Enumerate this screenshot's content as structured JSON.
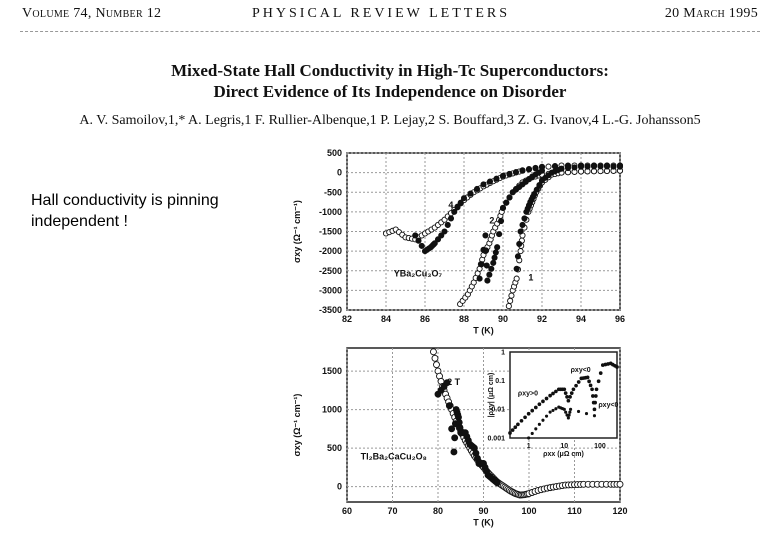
{
  "header": {
    "volume": "Volume 74, Number 12",
    "journal": "PHYSICAL REVIEW LETTERS",
    "date": "20 March 1995"
  },
  "paper": {
    "title_line1": "Mixed-State Hall Conductivity in High-Tc Superconductors:",
    "title_line2": "Direct Evidence of Its Independence on Disorder",
    "authors": "A. V. Samoilov,1,* A. Legris,1 F. Rullier-Albenque,1 P. Lejay,2 S. Bouffard,3 Z. G. Ivanov,4 L.-G. Johansson5"
  },
  "slide": {
    "note_line1": "Hall conductivity is pinning",
    "note_line2": "independent !"
  },
  "chart_data": [
    {
      "type": "scatter",
      "xlabel": "T (K)",
      "ylabel": "σxy (Ω⁻¹ cm⁻¹)",
      "xlim": [
        82,
        96
      ],
      "ylim": [
        -3500,
        500
      ],
      "xticks": [
        82,
        84,
        86,
        88,
        90,
        92,
        94,
        96
      ],
      "yticks": [
        500,
        0,
        -500,
        -1000,
        -1500,
        -2000,
        -2500,
        -3000,
        -3500
      ],
      "grid": true,
      "annotations": [
        {
          "text": "4",
          "x": 87.2,
          "y": -900
        },
        {
          "text": "2",
          "x": 89.3,
          "y": -1300
        },
        {
          "text": "1",
          "x": 91.3,
          "y": -2750
        },
        {
          "text": "YBa₂Cu₃O₇",
          "x": 84.4,
          "y": -2650
        }
      ],
      "series": [
        {
          "marker": "open",
          "points": [
            [
              84,
              -1550
            ],
            [
              84.5,
              -1450
            ],
            [
              85,
              -1650
            ],
            [
              85.5,
              -1700
            ],
            [
              86,
              -1550
            ],
            [
              86.5,
              -1400
            ],
            [
              87,
              -1200
            ],
            [
              87.5,
              -950
            ],
            [
              88,
              -700
            ],
            [
              88.5,
              -500
            ],
            [
              89,
              -350
            ],
            [
              89.5,
              -220
            ],
            [
              90,
              -100
            ],
            [
              90.5,
              -20
            ],
            [
              91,
              50
            ],
            [
              92,
              140
            ],
            [
              93,
              180
            ],
            [
              94,
              180
            ],
            [
              95,
              180
            ],
            [
              96,
              180
            ]
          ]
        },
        {
          "marker": "filled",
          "points": [
            [
              85.5,
              -1600
            ],
            [
              86,
              -2000
            ],
            [
              86.3,
              -1900
            ],
            [
              86.5,
              -1800
            ],
            [
              87,
              -1500
            ],
            [
              87.5,
              -1000
            ],
            [
              88,
              -650
            ],
            [
              89,
              -300
            ],
            [
              90,
              -80
            ],
            [
              91,
              60
            ],
            [
              92,
              150
            ],
            [
              94,
              180
            ],
            [
              96,
              180
            ]
          ]
        },
        {
          "marker": "open",
          "points": [
            [
              87.8,
              -3350
            ],
            [
              88.2,
              -3100
            ],
            [
              88.5,
              -2800
            ],
            [
              88.8,
              -2450
            ],
            [
              89,
              -2100
            ],
            [
              89.3,
              -1800
            ],
            [
              89.5,
              -1500
            ],
            [
              89.8,
              -1200
            ],
            [
              90,
              -900
            ],
            [
              90.5,
              -500
            ],
            [
              91,
              -250
            ],
            [
              91.5,
              -120
            ],
            [
              92,
              -50
            ],
            [
              93,
              0
            ],
            [
              94,
              30
            ],
            [
              95,
              40
            ],
            [
              96,
              50
            ]
          ]
        },
        {
          "marker": "filled",
          "points": [
            [
              88.8,
              -2700
            ],
            [
              89.1,
              -1600
            ],
            [
              89.2,
              -2750
            ],
            [
              89.5,
              -2300
            ],
            [
              89.7,
              -1900
            ],
            [
              90,
              -900
            ],
            [
              90.5,
              -500
            ],
            [
              91,
              -300
            ],
            [
              91.5,
              -100
            ],
            [
              92,
              50
            ]
          ]
        },
        {
          "marker": "open",
          "points": [
            [
              90.3,
              -3400
            ],
            [
              90.5,
              -3000
            ],
            [
              90.7,
              -2700
            ],
            [
              90.9,
              -2000
            ],
            [
              91,
              -1600
            ],
            [
              91.3,
              -1000
            ],
            [
              91.5,
              -750
            ],
            [
              91.7,
              -500
            ],
            [
              92,
              -250
            ],
            [
              92.5,
              -50
            ],
            [
              93,
              0
            ],
            [
              94,
              30
            ],
            [
              95,
              40
            ],
            [
              96,
              50
            ]
          ]
        },
        {
          "marker": "filled",
          "points": [
            [
              90.7,
              -2450
            ],
            [
              90.9,
              -1500
            ],
            [
              91.2,
              -1000
            ],
            [
              91.4,
              -750
            ],
            [
              91.6,
              -550
            ],
            [
              92,
              -200
            ],
            [
              92.5,
              0
            ],
            [
              93,
              100
            ],
            [
              94,
              150
            ],
            [
              95,
              160
            ],
            [
              96,
              150
            ]
          ]
        }
      ]
    },
    {
      "type": "scatter",
      "xlabel": "T (K)",
      "ylabel": "σxy (Ω⁻¹ cm⁻¹)",
      "xlim": [
        60,
        120
      ],
      "ylim": [
        -200,
        1800
      ],
      "xticks": [
        60,
        70,
        80,
        90,
        100,
        110,
        120
      ],
      "yticks": [
        0,
        500,
        1000,
        1500
      ],
      "grid": true,
      "annotations": [
        {
          "text": "2 T",
          "x": 82,
          "y": 1320
        },
        {
          "text": "Tl₂Ba₂CaCu₂O₈",
          "x": 63,
          "y": 350
        }
      ],
      "series": [
        {
          "marker": "open",
          "points": [
            [
              79,
              1750
            ],
            [
              80,
              1500
            ],
            [
              81,
              1300
            ],
            [
              82,
              1150
            ],
            [
              83,
              1000
            ],
            [
              84,
              850
            ],
            [
              85,
              720
            ],
            [
              86,
              600
            ],
            [
              87,
              500
            ],
            [
              88,
              400
            ],
            [
              89,
              320
            ],
            [
              90,
              250
            ],
            [
              91,
              180
            ],
            [
              92,
              120
            ],
            [
              93,
              60
            ],
            [
              94,
              20
            ],
            [
              95,
              -20
            ],
            [
              96,
              -60
            ],
            [
              97,
              -90
            ],
            [
              98,
              -110
            ],
            [
              99,
              -105
            ],
            [
              100,
              -90
            ],
            [
              102,
              -50
            ],
            [
              104,
              -20
            ],
            [
              106,
              0
            ],
            [
              108,
              20
            ],
            [
              110,
              25
            ],
            [
              112,
              30
            ],
            [
              115,
              30
            ],
            [
              118,
              30
            ],
            [
              120,
              30
            ]
          ]
        },
        {
          "marker": "filled",
          "points": [
            [
              80,
              1200
            ],
            [
              82,
              1350
            ],
            [
              83.5,
              450
            ],
            [
              84,
              1000
            ],
            [
              84.5,
              900
            ],
            [
              85,
              700
            ],
            [
              86,
              700
            ],
            [
              87,
              550
            ],
            [
              88,
              500
            ],
            [
              89,
              300
            ],
            [
              90,
              300
            ],
            [
              91,
              150
            ],
            [
              92,
              100
            ],
            [
              93,
              50
            ]
          ]
        }
      ],
      "inset": {
        "type": "scatter",
        "scale": "log-log",
        "xlabel": "ρxx (μΩ cm)",
        "ylabel": "|ρxy| (μΩ cm)",
        "xlim": [
          0.3,
          300
        ],
        "ylim": [
          0.001,
          1
        ],
        "xticks": [
          1,
          10,
          100
        ],
        "yticks": [
          0.001,
          0.01,
          0.1,
          1
        ],
        "annotations": [
          {
            "text": "ρxy>0",
            "x": 0.5,
            "y": 0.03
          },
          {
            "text": "ρxy<0",
            "x": 15,
            "y": 0.2
          },
          {
            "text": "ρxy<0",
            "x": 90,
            "y": 0.012
          }
        ],
        "series": [
          {
            "marker": "filled",
            "points": [
              [
                0.3,
                0.0015
              ],
              [
                0.5,
                0.003
              ],
              [
                1,
                0.007
              ],
              [
                2,
                0.015
              ],
              [
                4,
                0.03
              ],
              [
                7,
                0.05
              ],
              [
                10,
                0.05
              ],
              [
                13,
                0.02
              ],
              [
                18,
                0.05
              ],
              [
                30,
                0.12
              ],
              [
                45,
                0.13
              ],
              [
                60,
                0.05
              ],
              [
                70,
                0.01
              ],
              [
                80,
                0.05
              ],
              [
                120,
                0.35
              ],
              [
                200,
                0.4
              ],
              [
                300,
                0.3
              ]
            ]
          },
          {
            "marker": "star",
            "points": [
              [
                1,
                0.001
              ],
              [
                2,
                0.003
              ],
              [
                4,
                0.008
              ],
              [
                7,
                0.012
              ],
              [
                10,
                0.01
              ],
              [
                13,
                0.005
              ],
              [
                15,
                0.01
              ],
              [
                70,
                0.006
              ]
            ]
          }
        ]
      }
    }
  ]
}
